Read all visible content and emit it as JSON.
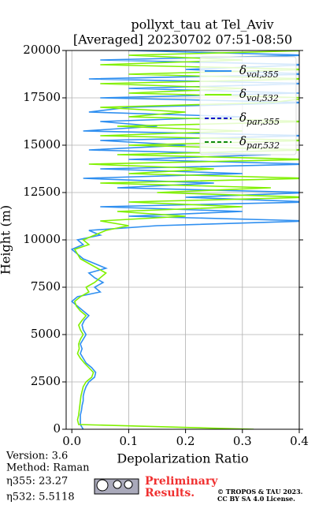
{
  "chart_data": {
    "type": "line",
    "title": "pollyxt_tau at Tel_Aviv",
    "subtitle": "[Averaged] 20230702 07:51-08:50",
    "xlabel": "Depolarization Ratio",
    "ylabel": "Height (m)",
    "orientation": "vertical-profile",
    "x": [
      0,
      250,
      500,
      750,
      1000,
      1250,
      1500,
      1750,
      2000,
      2250,
      2500,
      2750,
      3000,
      3250,
      3500,
      3750,
      4000,
      4250,
      4500,
      4750,
      5000,
      5250,
      5500,
      5750,
      6000,
      6250,
      6500,
      6750,
      7000,
      7250,
      7500,
      7750,
      8000,
      8250,
      8500,
      8750,
      9000,
      9250,
      9500,
      9750,
      10000,
      10250,
      10500,
      10750,
      11000,
      11250,
      11500,
      11750,
      12000,
      12250,
      12500,
      12750,
      13000,
      13250,
      13500,
      13750,
      14000,
      14250,
      14500,
      14750,
      15000,
      15250,
      15500,
      15750,
      16000,
      16250,
      16500,
      16750,
      17000,
      17250,
      17500,
      17750,
      18000,
      18250,
      18500,
      18750,
      19000,
      19250,
      19500,
      19750,
      20000
    ],
    "series": [
      {
        "name": "δvol,355",
        "color": "#2f8ff0",
        "linestyle": "solid",
        "values": [
          0.02,
          0.015,
          0.015,
          0.015,
          0.017,
          0.018,
          0.02,
          0.02,
          0.022,
          0.025,
          0.03,
          0.04,
          0.042,
          0.035,
          0.025,
          0.02,
          0.015,
          0.018,
          0.015,
          0.02,
          0.025,
          0.02,
          0.018,
          0.022,
          0.03,
          0.02,
          0.01,
          0.0,
          0.01,
          0.05,
          0.04,
          0.055,
          0.04,
          0.03,
          0.06,
          0.04,
          0.02,
          0.01,
          0.0,
          0.02,
          0.01,
          0.05,
          0.03,
          0.15,
          0.42,
          0.1,
          0.3,
          0.05,
          0.42,
          0.2,
          0.42,
          0.08,
          0.25,
          0.02,
          0.3,
          0.05,
          0.42,
          0.1,
          0.35,
          0.03,
          0.2,
          0.05,
          0.42,
          0.02,
          0.15,
          0.05,
          0.3,
          0.03,
          0.1,
          0.42,
          0.05,
          0.4,
          0.1,
          0.42,
          0.03,
          0.42,
          0.2,
          0.42,
          0.05,
          0.42,
          0.1
        ]
      },
      {
        "name": "δvol,532",
        "color": "#80f000",
        "linestyle": "solid",
        "values": [
          0.32,
          0.012,
          0.01,
          0.012,
          0.013,
          0.014,
          0.015,
          0.016,
          0.018,
          0.02,
          0.025,
          0.035,
          0.038,
          0.03,
          0.022,
          0.015,
          0.01,
          0.013,
          0.012,
          0.015,
          0.02,
          0.015,
          0.012,
          0.018,
          0.025,
          0.015,
          0.008,
          0.005,
          0.015,
          0.03,
          0.025,
          0.04,
          0.05,
          0.06,
          0.045,
          0.03,
          0.015,
          0.01,
          0.005,
          0.03,
          0.02,
          0.04,
          0.06,
          0.1,
          0.05,
          0.2,
          0.08,
          0.3,
          0.1,
          0.42,
          0.15,
          0.35,
          0.05,
          0.42,
          0.1,
          0.25,
          0.03,
          0.42,
          0.08,
          0.42,
          0.1,
          0.42,
          0.05,
          0.3,
          0.08,
          0.42,
          0.1,
          0.2,
          0.05,
          0.35,
          0.42,
          0.1,
          0.3,
          0.05,
          0.42,
          0.1,
          0.42,
          0.05,
          0.3,
          0.1,
          0.42
        ]
      },
      {
        "name": "δpar,355",
        "color": "#0000c8",
        "linestyle": "dashed",
        "values": [
          null,
          null,
          null,
          null,
          null,
          null,
          null,
          null,
          null,
          null,
          null,
          null,
          null,
          null,
          null,
          null,
          null,
          null,
          null,
          null,
          null,
          null,
          null,
          null,
          null,
          null,
          null,
          null,
          null,
          null,
          null,
          null,
          null,
          null,
          null,
          null,
          null,
          null,
          null,
          null,
          null,
          null,
          null,
          null,
          null,
          null,
          null,
          null,
          null,
          null,
          null,
          null,
          null,
          null,
          null,
          null,
          null,
          null,
          null,
          null,
          null,
          null,
          null,
          null,
          null,
          null,
          null,
          null,
          null,
          null,
          null,
          null,
          null,
          null,
          null,
          null,
          null,
          null,
          null,
          null,
          null
        ]
      },
      {
        "name": "δpar,532",
        "color": "#108a10",
        "linestyle": "dashed",
        "values": [
          null,
          null,
          null,
          null,
          null,
          null,
          null,
          null,
          null,
          null,
          null,
          null,
          null,
          null,
          null,
          null,
          null,
          null,
          null,
          null,
          null,
          null,
          null,
          null,
          null,
          null,
          null,
          null,
          null,
          null,
          null,
          null,
          null,
          null,
          null,
          null,
          null,
          null,
          null,
          null,
          null,
          null,
          null,
          null,
          null,
          null,
          null,
          null,
          null,
          null,
          null,
          null,
          null,
          null,
          null,
          null,
          null,
          null,
          null,
          null,
          null,
          null,
          null,
          null,
          null,
          null,
          null,
          null,
          null,
          null,
          null,
          null,
          null,
          null,
          null,
          null,
          null,
          null,
          null,
          null,
          null
        ]
      }
    ],
    "xlim": [
      -0.01,
      0.4
    ],
    "xticks": [
      {
        "value": 0,
        "label": "0.0"
      },
      0.1,
      0.2,
      0.3,
      0.4
    ],
    "ylim": [
      0,
      20000
    ],
    "yticks": [
      0,
      2500,
      5000,
      7500,
      10000,
      12500,
      15000,
      17500,
      20000
    ],
    "grid": true,
    "legend": "upper right",
    "info": [
      "Version: 3.6",
      "Method: Raman",
      "η355:  23.27",
      "η532: 5.5118"
    ],
    "notice": [
      "Preliminary",
      "Results."
    ],
    "copyright": [
      "© TROPOS & TAU 2023.",
      "CC BY SA 4.0 License."
    ]
  }
}
